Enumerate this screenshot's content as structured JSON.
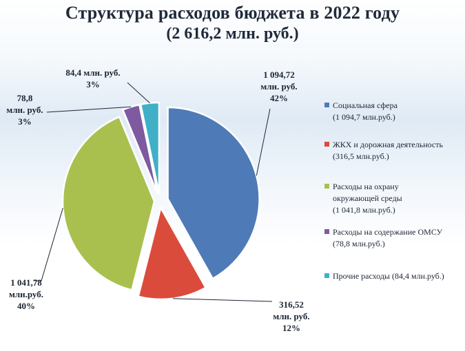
{
  "title": "Структура расходов бюджета в 2022 году",
  "subtitle": "(2 616,2 млн. руб.)",
  "chart_data": {
    "type": "pie",
    "title": "Структура расходов бюджета в 2022 году",
    "subtitle": "(2 616,2 млн. руб.)",
    "total": 2616.2,
    "series": [
      {
        "name": "Социальная сфера",
        "value": 1094.72,
        "percent": 42,
        "color": "#4f7ab8",
        "data_label": [
          "1 094,72",
          "млн. руб.",
          "42%"
        ],
        "legend_label": [
          "Социальная сфера",
          "(1 094,7 млн.руб.)"
        ]
      },
      {
        "name": "ЖКХ и дорожная деятельность",
        "value": 316.52,
        "percent": 12,
        "color": "#db4b3c",
        "data_label": [
          "316,52",
          "млн. руб.",
          "12%"
        ],
        "legend_label": [
          "ЖКХ и дорожная деятельность",
          "(316,5 млн.руб.)"
        ]
      },
      {
        "name": "Расходы на охрану окружающей среды",
        "value": 1041.78,
        "percent": 40,
        "color": "#a9c04f",
        "data_label": [
          "1 041,78",
          "млн.руб.",
          "40%"
        ],
        "legend_label": [
          "Расходы на охрану",
          "окружающей среды",
          "(1 041,8 млн.руб.)"
        ]
      },
      {
        "name": "Расходы на содержание ОМСУ",
        "value": 78.8,
        "percent": 3,
        "color": "#7e5aa0",
        "data_label": [
          "78,8",
          "млн. руб.",
          "3%"
        ],
        "legend_label": [
          "Расходы на содержание ОМСУ",
          "(78,8 млн.руб.)"
        ]
      },
      {
        "name": "Прочие расходы",
        "value": 84.4,
        "percent": 3,
        "color": "#3fb0c8",
        "data_label": [
          "84,4 млн. руб.",
          "3%"
        ],
        "legend_label": [
          "Прочие расходы (84,4 млн.руб.)"
        ]
      }
    ],
    "legend_position": "right",
    "grid": false
  }
}
